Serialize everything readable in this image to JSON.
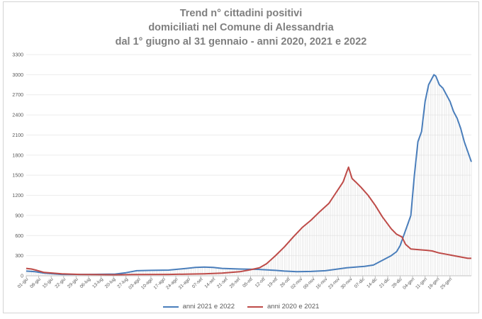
{
  "chart_data": {
    "type": "line",
    "title_lines": [
      "Trend n° cittadini positivi",
      "domiciliati nel Comune di Alessandria",
      "dal 1° giugno al 31 gennaio - anni 2020, 2021 e 2022"
    ],
    "xlabel": "",
    "ylabel": "",
    "ylim": [
      0,
      3300
    ],
    "y_ticks": [
      0,
      300,
      600,
      900,
      1200,
      1500,
      1800,
      2100,
      2400,
      2700,
      3000,
      3300
    ],
    "x_tick_labels": [
      "01-giu",
      "08-giu",
      "15-giu",
      "22-giu",
      "29-giu",
      "06-lug",
      "13-lug",
      "20-lug",
      "27-lug",
      "03-ago",
      "10-ago",
      "17-ago",
      "24-ago",
      "31-ago",
      "07-set",
      "14-set",
      "21-set",
      "28-set",
      "05-ott",
      "12-ott",
      "19-ott",
      "26-ott",
      "02-nov",
      "09-nov",
      "16-nov",
      "23-nov",
      "30-nov",
      "07-dic",
      "14-dic",
      "21-dic",
      "28-dic",
      "04-gen",
      "11-gen",
      "18-gen",
      "25-gen"
    ],
    "x_day_index_range": [
      0,
      244
    ],
    "legend_position": "bottom",
    "series": [
      {
        "name": "anni 2021 e 2022",
        "color": "#4a7ebb",
        "points": [
          [
            0,
            70
          ],
          [
            5,
            60
          ],
          [
            10,
            40
          ],
          [
            20,
            20
          ],
          [
            35,
            20
          ],
          [
            50,
            25
          ],
          [
            56,
            45
          ],
          [
            62,
            75
          ],
          [
            70,
            80
          ],
          [
            80,
            85
          ],
          [
            90,
            110
          ],
          [
            95,
            125
          ],
          [
            100,
            130
          ],
          [
            105,
            125
          ],
          [
            110,
            110
          ],
          [
            120,
            100
          ],
          [
            130,
            95
          ],
          [
            140,
            80
          ],
          [
            145,
            70
          ],
          [
            152,
            60
          ],
          [
            160,
            65
          ],
          [
            168,
            75
          ],
          [
            175,
            100
          ],
          [
            180,
            120
          ],
          [
            185,
            130
          ],
          [
            190,
            140
          ],
          [
            195,
            160
          ],
          [
            200,
            230
          ],
          [
            205,
            300
          ],
          [
            208,
            360
          ],
          [
            210,
            450
          ],
          [
            212,
            600
          ],
          [
            214,
            750
          ],
          [
            216,
            900
          ],
          [
            218,
            1500
          ],
          [
            220,
            2000
          ],
          [
            222,
            2150
          ],
          [
            224,
            2600
          ],
          [
            226,
            2850
          ],
          [
            228,
            2950
          ],
          [
            229,
            3000
          ],
          [
            230,
            2980
          ],
          [
            232,
            2850
          ],
          [
            234,
            2800
          ],
          [
            236,
            2700
          ],
          [
            238,
            2600
          ],
          [
            240,
            2450
          ],
          [
            242,
            2350
          ],
          [
            244,
            2200
          ],
          [
            246,
            2000
          ],
          [
            248,
            1850
          ],
          [
            250,
            1700
          ]
        ]
      },
      {
        "name": "anni 2020 e 2021",
        "color": "#be4b48",
        "points": [
          [
            0,
            110
          ],
          [
            3,
            100
          ],
          [
            6,
            80
          ],
          [
            10,
            50
          ],
          [
            15,
            40
          ],
          [
            20,
            30
          ],
          [
            30,
            20
          ],
          [
            50,
            15
          ],
          [
            60,
            18
          ],
          [
            80,
            20
          ],
          [
            100,
            30
          ],
          [
            110,
            40
          ],
          [
            120,
            60
          ],
          [
            126,
            90
          ],
          [
            131,
            120
          ],
          [
            135,
            180
          ],
          [
            140,
            300
          ],
          [
            145,
            430
          ],
          [
            150,
            580
          ],
          [
            155,
            720
          ],
          [
            160,
            830
          ],
          [
            165,
            960
          ],
          [
            170,
            1080
          ],
          [
            173,
            1200
          ],
          [
            176,
            1320
          ],
          [
            178,
            1400
          ],
          [
            180,
            1550
          ],
          [
            181,
            1620
          ],
          [
            183,
            1450
          ],
          [
            185,
            1400
          ],
          [
            188,
            1320
          ],
          [
            192,
            1200
          ],
          [
            196,
            1050
          ],
          [
            200,
            880
          ],
          [
            205,
            700
          ],
          [
            208,
            620
          ],
          [
            211,
            580
          ],
          [
            213,
            470
          ],
          [
            216,
            400
          ],
          [
            220,
            390
          ],
          [
            225,
            380
          ],
          [
            228,
            370
          ],
          [
            232,
            340
          ],
          [
            236,
            320
          ],
          [
            240,
            300
          ],
          [
            244,
            280
          ],
          [
            248,
            260
          ],
          [
            250,
            260
          ]
        ]
      }
    ]
  }
}
